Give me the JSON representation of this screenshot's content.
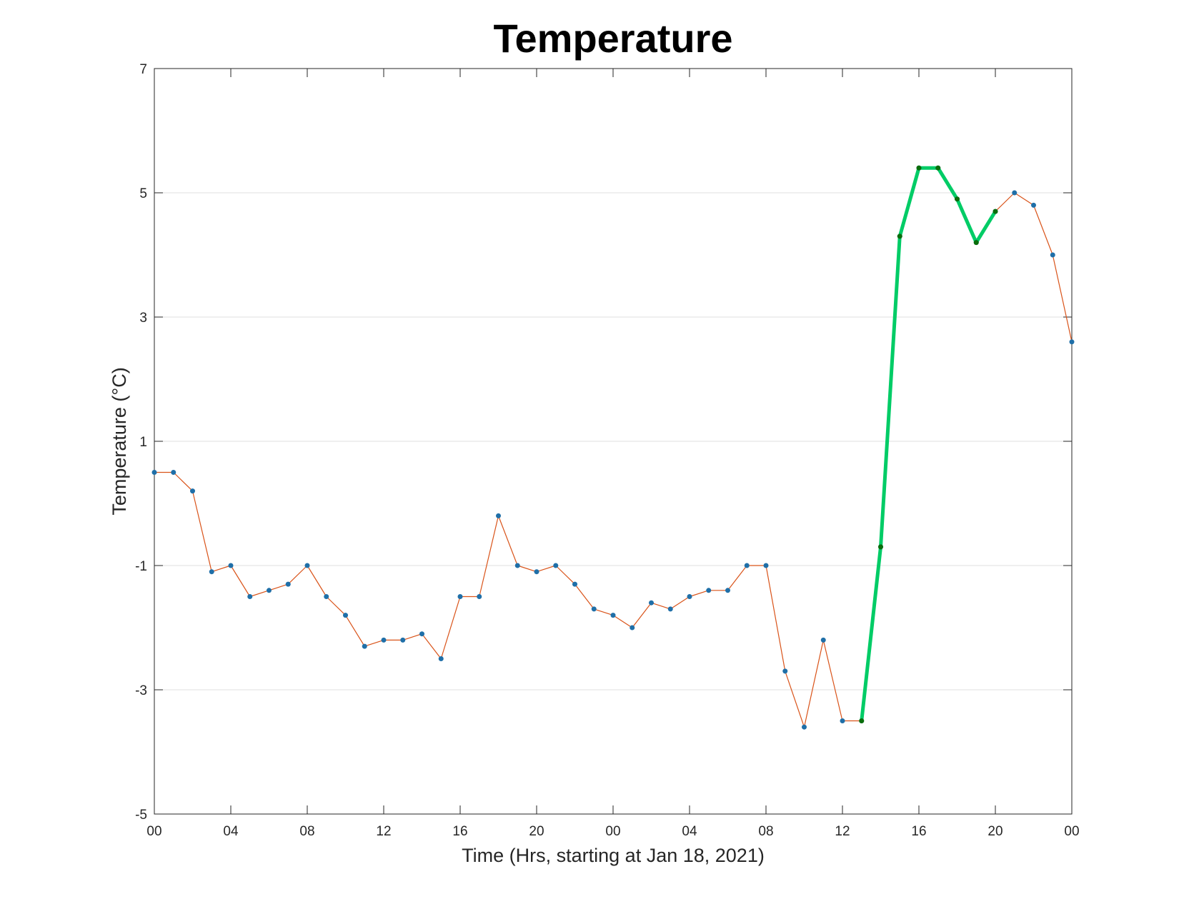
{
  "chart_data": {
    "type": "line",
    "title": "Temperature",
    "xlabel": "Time (Hrs, starting at Jan 18, 2021)",
    "ylabel": "Temperature (°C)",
    "x_tick_labels": [
      "00",
      "04",
      "08",
      "12",
      "16",
      "20",
      "00",
      "04",
      "08",
      "12",
      "16",
      "20",
      "00"
    ],
    "y_ticks": [
      7,
      5,
      3,
      1,
      -1,
      -3,
      -5
    ],
    "xlim_hours": [
      0,
      48
    ],
    "ylim": [
      -5,
      7
    ],
    "grid": "horizontal",
    "x_hours": [
      0,
      1,
      2,
      3,
      4,
      5,
      6,
      7,
      8,
      9,
      10,
      11,
      12,
      13,
      14,
      15,
      16,
      17,
      18,
      19,
      20,
      21,
      22,
      23,
      24,
      25,
      26,
      27,
      28,
      29,
      30,
      31,
      32,
      33,
      34,
      35,
      36,
      37,
      38,
      39,
      40,
      41,
      42,
      43,
      44,
      45,
      46,
      47,
      48
    ],
    "series": [
      {
        "values": [
          0.5,
          0.5,
          0.2,
          -1.1,
          -1.0,
          -1.5,
          -1.4,
          -1.3,
          -1.0,
          -1.5,
          -1.8,
          -2.3,
          -2.2,
          -2.2,
          -2.1,
          -2.5,
          -1.5,
          -1.5,
          -0.2,
          -1.0,
          -1.1,
          -1.0,
          -1.3,
          -1.7,
          -1.8,
          -2.0,
          -1.6,
          -1.7,
          -1.5,
          -1.4,
          -1.4,
          -1.0,
          -1.0,
          -2.7,
          -3.6,
          -2.2,
          -3.5,
          -3.5,
          -0.7,
          4.3,
          5.4,
          5.4,
          4.9,
          4.2,
          4.7,
          5.0,
          4.8,
          4.0,
          2.6
        ],
        "color": "#d95319",
        "marker_color": "#1f6fa8"
      },
      {
        "start_hour": 37,
        "values": [
          -3.5,
          -0.7,
          4.3,
          5.4,
          5.4,
          4.9,
          4.2,
          4.7
        ],
        "color": "#00cc66",
        "marker_color": "#0a6e0a"
      }
    ]
  }
}
